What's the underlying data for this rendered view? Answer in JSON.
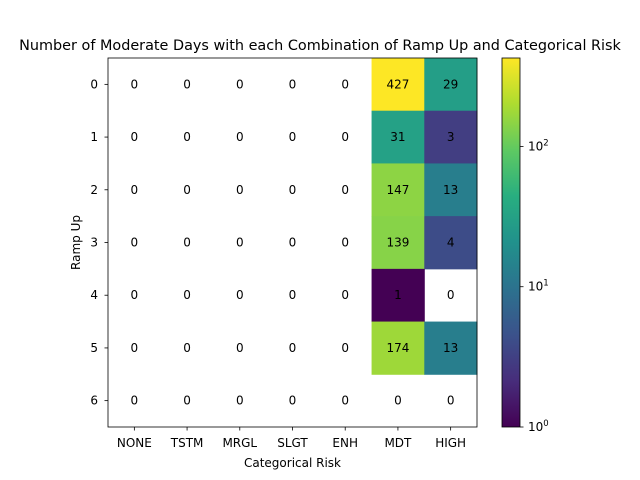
{
  "chart_data": {
    "type": "heatmap",
    "title": "Number of Moderate Days with each Combination of Ramp Up and Categorical Risk",
    "xlabel": "Categorical Risk",
    "ylabel": "Ramp Up",
    "x_categories": [
      "NONE",
      "TSTM",
      "MRGL",
      "SLGT",
      "ENH",
      "MDT",
      "HIGH"
    ],
    "y_categories": [
      "0",
      "1",
      "2",
      "3",
      "4",
      "5",
      "6"
    ],
    "values": [
      [
        0,
        0,
        0,
        0,
        0,
        427,
        29
      ],
      [
        0,
        0,
        0,
        0,
        0,
        31,
        3
      ],
      [
        0,
        0,
        0,
        0,
        0,
        147,
        13
      ],
      [
        0,
        0,
        0,
        0,
        0,
        139,
        4
      ],
      [
        0,
        0,
        0,
        0,
        0,
        1,
        0
      ],
      [
        0,
        0,
        0,
        0,
        0,
        174,
        13
      ],
      [
        0,
        0,
        0,
        0,
        0,
        0,
        0
      ]
    ],
    "color_scale": "log",
    "colormap": "viridis",
    "clim": [
      1,
      427
    ],
    "zero_cells": "blank (white)",
    "colorbar": {
      "position": "right",
      "ticks": [
        {
          "value": 1,
          "base": "10",
          "exp": "0"
        },
        {
          "value": 10,
          "base": "10",
          "exp": "1"
        },
        {
          "value": 100,
          "base": "10",
          "exp": "2"
        }
      ]
    },
    "grid": false
  }
}
